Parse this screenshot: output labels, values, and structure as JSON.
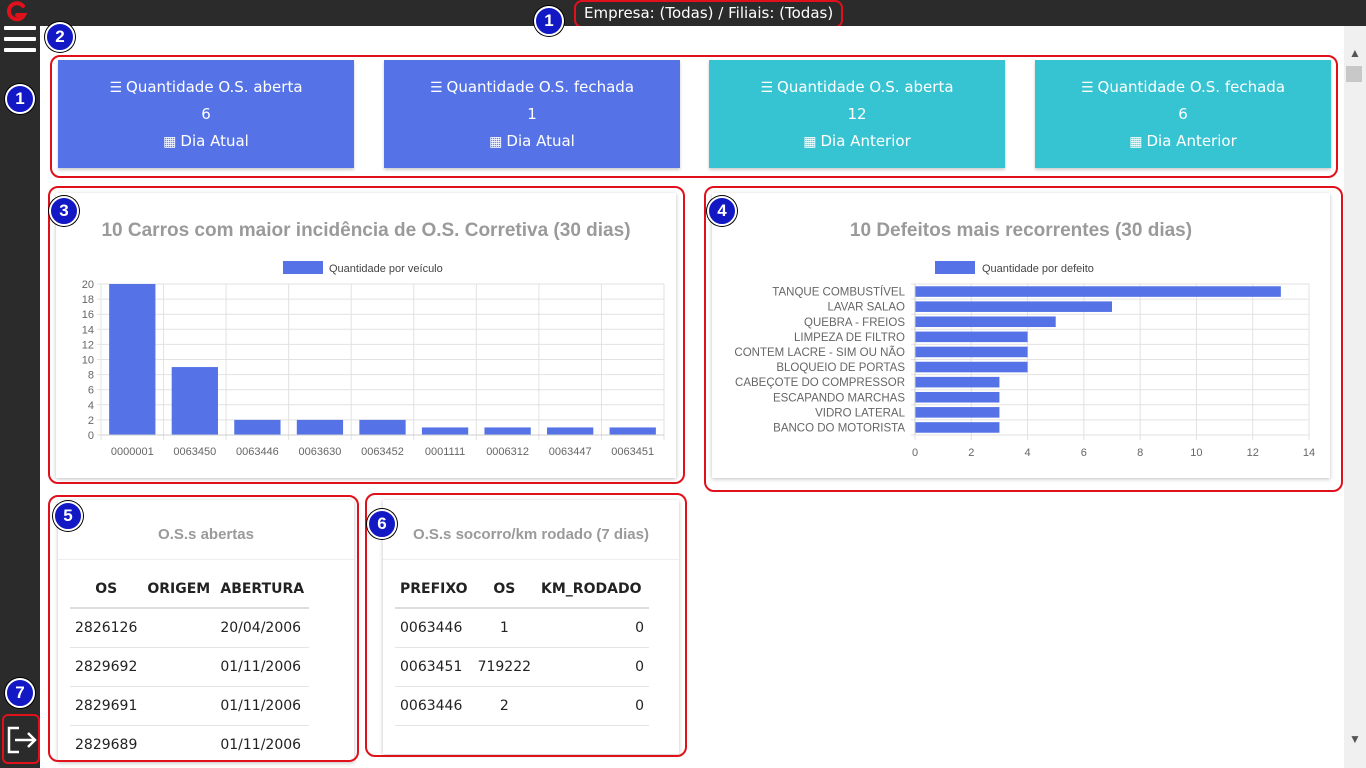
{
  "header": {
    "company_filter": "Empresa: (Todas) / Filiais: (Todas)"
  },
  "markers": [
    "1",
    "1",
    "2",
    "3",
    "4",
    "5",
    "6",
    "7"
  ],
  "kpis": [
    {
      "title": "Quantidade O.S. aberta",
      "value": "6",
      "period": "Dia Atual",
      "color": "#5573e6"
    },
    {
      "title": "Quantidade O.S. fechada",
      "value": "1",
      "period": "Dia Atual",
      "color": "#5573e6"
    },
    {
      "title": "Quantidade O.S. aberta",
      "value": "12",
      "period": "Dia Anterior",
      "color": "#36c3d2"
    },
    {
      "title": "Quantidade O.S. fechada",
      "value": "6",
      "period": "Dia Anterior",
      "color": "#36c3d2"
    }
  ],
  "chart_data": [
    {
      "type": "bar",
      "title": "10 Carros com maior incidência de O.S. Corretiva (30 dias)",
      "legend": "Quantidade por veículo",
      "legend_position": "top",
      "categories": [
        "0000001",
        "0063450",
        "0063446",
        "0063630",
        "0063452",
        "0001111",
        "0006312",
        "0063447",
        "0063451"
      ],
      "values": [
        20,
        9,
        2,
        2,
        2,
        1,
        1,
        1,
        1
      ],
      "ylim": [
        0,
        20
      ],
      "yticks": [
        0,
        2,
        4,
        6,
        8,
        10,
        12,
        14,
        16,
        18,
        20
      ],
      "grid": true,
      "color": "#5573e6"
    },
    {
      "type": "bar",
      "orientation": "horizontal",
      "title": "10 Defeitos mais recorrentes (30 dias)",
      "legend": "Quantidade por defeito",
      "legend_position": "top",
      "categories": [
        "TANQUE COMBUSTÍVEL",
        "LAVAR SALAO",
        "QUEBRA - FREIOS",
        "LIMPEZA DE FILTRO",
        "CONTEM LACRE - SIM OU NÃO",
        "BLOQUEIO DE PORTAS",
        "CABEÇOTE DO COMPRESSOR",
        "ESCAPANDO MARCHAS",
        "VIDRO LATERAL",
        "BANCO DO MOTORISTA"
      ],
      "values": [
        13,
        7,
        5,
        4,
        4,
        4,
        3,
        3,
        3,
        3
      ],
      "xlim": [
        0,
        14
      ],
      "xticks": [
        0,
        2,
        4,
        6,
        8,
        10,
        12,
        14
      ],
      "grid": true,
      "color": "#5573e6"
    }
  ],
  "open_os": {
    "title": "O.S.s abertas",
    "columns": [
      "OS",
      "ORIGEM",
      "ABERTURA"
    ],
    "rows": [
      [
        "2826126",
        "",
        "20/04/2006"
      ],
      [
        "2829692",
        "",
        "01/11/2006"
      ],
      [
        "2829691",
        "",
        "01/11/2006"
      ],
      [
        "2829689",
        "",
        "01/11/2006"
      ]
    ]
  },
  "rescue_os": {
    "title": "O.S.s socorro/km rodado (7 dias)",
    "columns": [
      "PREFIXO",
      "OS",
      "KM_RODADO"
    ],
    "rows": [
      [
        "0063446",
        "1",
        "0"
      ],
      [
        "0063451",
        "719222",
        "0"
      ],
      [
        "0063446",
        "2",
        "0"
      ]
    ]
  }
}
